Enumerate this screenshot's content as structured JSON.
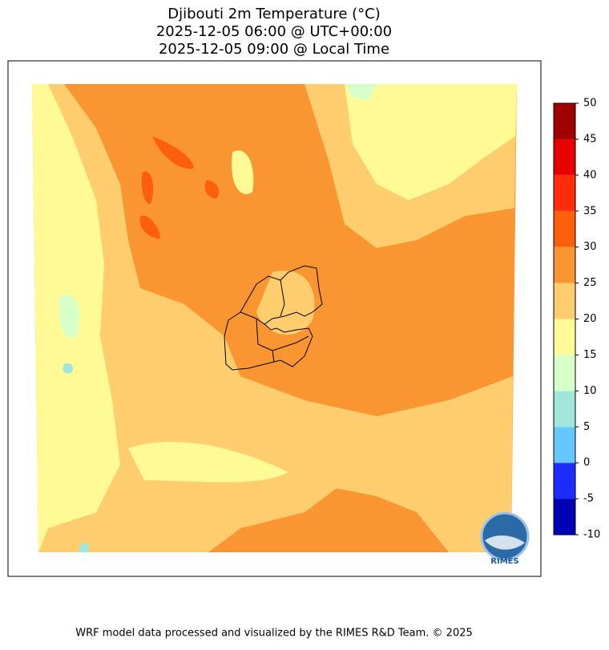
{
  "title": {
    "lines": [
      "Djibouti 2m Temperature (°C)",
      "2025-12-05 06:00 @ UTC+00:00",
      "2025-12-05 09:00 @ Local Time"
    ]
  },
  "colorbar": {
    "levels": [
      -10,
      -5,
      0,
      5,
      10,
      15,
      20,
      25,
      30,
      35,
      40,
      45,
      50
    ],
    "colors": [
      "#0000b4",
      "#1e2dff",
      "#64c8ff",
      "#a0e6dc",
      "#d7ffc8",
      "#fffa96",
      "#ffcd6e",
      "#fa9632",
      "#ff5f0a",
      "#ff2d0a",
      "#e60000",
      "#a00000"
    ]
  },
  "logo": "RIMES",
  "footer": "WRF model data processed and visualized by the RIMES R&D Team. © 2025"
}
